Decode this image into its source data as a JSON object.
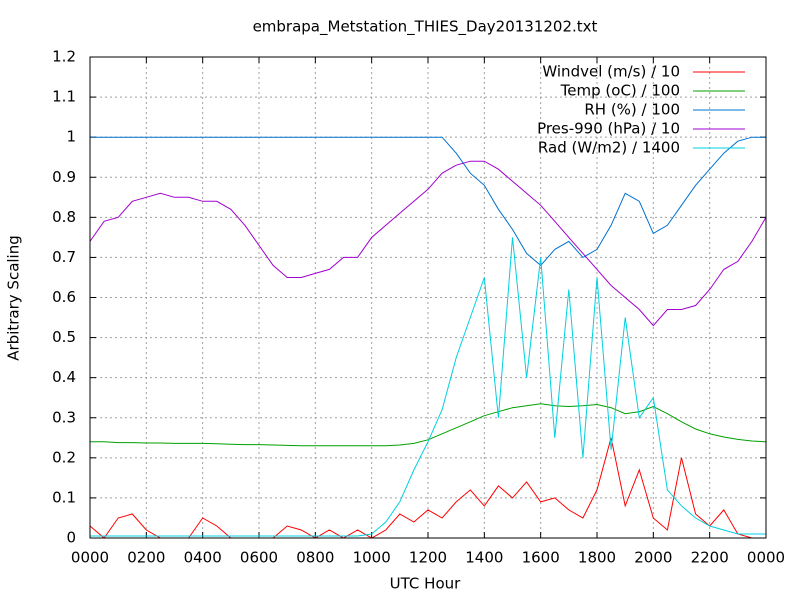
{
  "chart_data": {
    "type": "line",
    "title": "embrapa_Metstation_THIES_Day20131202.txt",
    "x_label": "UTC Hour",
    "y_label": "Arbitrary Scaling",
    "grid": true,
    "legend": "top-right",
    "xlim": [
      0,
      24
    ],
    "ylim": [
      0,
      1.2
    ],
    "xticks": [
      {
        "value": 0,
        "label": "0000"
      },
      {
        "value": 2,
        "label": "0200"
      },
      {
        "value": 4,
        "label": "0400"
      },
      {
        "value": 6,
        "label": "0600"
      },
      {
        "value": 8,
        "label": "0800"
      },
      {
        "value": 10,
        "label": "1000"
      },
      {
        "value": 12,
        "label": "1200"
      },
      {
        "value": 14,
        "label": "1400"
      },
      {
        "value": 16,
        "label": "1600"
      },
      {
        "value": 18,
        "label": "1800"
      },
      {
        "value": 20,
        "label": "2000"
      },
      {
        "value": 22,
        "label": "2200"
      },
      {
        "value": 24,
        "label": "0000"
      }
    ],
    "yticks": [
      0,
      0.1,
      0.2,
      0.3,
      0.4,
      0.5,
      0.6,
      0.7,
      0.8,
      0.9,
      1,
      1.1,
      1.2
    ],
    "x": [
      0,
      0.5,
      1,
      1.5,
      2,
      2.5,
      3,
      3.5,
      4,
      4.5,
      5,
      5.5,
      6,
      6.5,
      7,
      7.5,
      8,
      8.5,
      9,
      9.5,
      10,
      10.5,
      11,
      11.5,
      12,
      12.5,
      13,
      13.5,
      14,
      14.5,
      15,
      15.5,
      16,
      16.5,
      17,
      17.5,
      18,
      18.5,
      19,
      19.5,
      20,
      20.5,
      21,
      21.5,
      22,
      22.5,
      23,
      23.5,
      24
    ],
    "series": [
      {
        "name": "Windvel (m/s) / 10",
        "color": "#ff0000",
        "values": [
          0.03,
          0,
          0.05,
          0.06,
          0.02,
          0,
          0,
          0,
          0.05,
          0.03,
          0,
          0,
          0,
          0,
          0.03,
          0.02,
          0,
          0.02,
          0,
          0.02,
          0,
          0.02,
          0.06,
          0.04,
          0.07,
          0.05,
          0.09,
          0.12,
          0.08,
          0.13,
          0.1,
          0.14,
          0.09,
          0.1,
          0.07,
          0.05,
          0.12,
          0.25,
          0.08,
          0.17,
          0.05,
          0.02,
          0.2,
          0.06,
          0.03,
          0.07,
          0.01,
          0,
          0
        ]
      },
      {
        "name": "Temp (oC) / 100",
        "color": "#00a000",
        "values": [
          0.24,
          0.24,
          0.238,
          0.238,
          0.237,
          0.237,
          0.236,
          0.236,
          0.236,
          0.235,
          0.234,
          0.233,
          0.233,
          0.232,
          0.231,
          0.23,
          0.23,
          0.23,
          0.23,
          0.23,
          0.23,
          0.23,
          0.232,
          0.236,
          0.245,
          0.26,
          0.275,
          0.29,
          0.305,
          0.315,
          0.325,
          0.33,
          0.335,
          0.33,
          0.328,
          0.33,
          0.333,
          0.325,
          0.31,
          0.315,
          0.328,
          0.31,
          0.29,
          0.272,
          0.26,
          0.252,
          0.246,
          0.242,
          0.24
        ]
      },
      {
        "name": "RH (%) / 100",
        "color": "#0070d0",
        "values": [
          1,
          1,
          1,
          1,
          1,
          1,
          1,
          1,
          1,
          1,
          1,
          1,
          1,
          1,
          1,
          1,
          1,
          1,
          1,
          1,
          1,
          1,
          1,
          1,
          1,
          1,
          0.96,
          0.91,
          0.88,
          0.82,
          0.77,
          0.71,
          0.68,
          0.72,
          0.74,
          0.7,
          0.72,
          0.78,
          0.86,
          0.84,
          0.76,
          0.78,
          0.83,
          0.88,
          0.92,
          0.96,
          0.99,
          1,
          1
        ]
      },
      {
        "name": "Pres-990 (hPa) / 10",
        "color": "#a000d0",
        "values": [
          0.74,
          0.79,
          0.8,
          0.84,
          0.85,
          0.86,
          0.85,
          0.85,
          0.84,
          0.84,
          0.82,
          0.78,
          0.73,
          0.68,
          0.65,
          0.65,
          0.66,
          0.67,
          0.7,
          0.7,
          0.75,
          0.78,
          0.81,
          0.84,
          0.87,
          0.91,
          0.93,
          0.94,
          0.94,
          0.92,
          0.89,
          0.86,
          0.83,
          0.79,
          0.75,
          0.71,
          0.67,
          0.63,
          0.6,
          0.57,
          0.53,
          0.57,
          0.57,
          0.58,
          0.62,
          0.67,
          0.69,
          0.74,
          0.8
        ]
      },
      {
        "name": "Rad (W/m2) / 1400",
        "color": "#00d0e0",
        "values": [
          0.005,
          0.005,
          0.005,
          0.005,
          0.005,
          0.005,
          0.005,
          0.005,
          0.005,
          0.005,
          0.005,
          0.005,
          0.005,
          0.005,
          0.005,
          0.005,
          0.005,
          0.005,
          0.005,
          0.005,
          0.01,
          0.04,
          0.09,
          0.17,
          0.24,
          0.32,
          0.45,
          0.55,
          0.65,
          0.3,
          0.75,
          0.4,
          0.7,
          0.25,
          0.62,
          0.2,
          0.65,
          0.22,
          0.55,
          0.3,
          0.35,
          0.12,
          0.08,
          0.05,
          0.03,
          0.02,
          0.01,
          0.01,
          0.01
        ]
      }
    ]
  }
}
